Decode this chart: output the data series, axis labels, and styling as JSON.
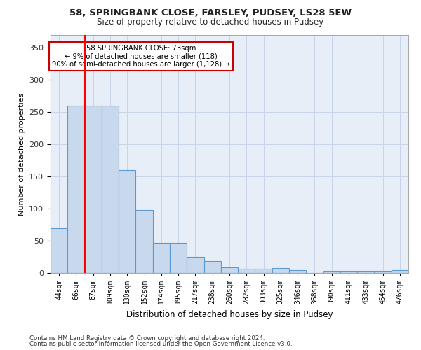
{
  "title_line1": "58, SPRINGBANK CLOSE, FARSLEY, PUDSEY, LS28 5EW",
  "title_line2": "Size of property relative to detached houses in Pudsey",
  "xlabel": "Distribution of detached houses by size in Pudsey",
  "ylabel": "Number of detached properties",
  "categories": [
    "44sqm",
    "66sqm",
    "87sqm",
    "109sqm",
    "130sqm",
    "152sqm",
    "174sqm",
    "195sqm",
    "217sqm",
    "238sqm",
    "260sqm",
    "282sqm",
    "303sqm",
    "325sqm",
    "346sqm",
    "368sqm",
    "390sqm",
    "411sqm",
    "433sqm",
    "454sqm",
    "476sqm"
  ],
  "values": [
    70,
    260,
    260,
    260,
    160,
    98,
    47,
    47,
    25,
    18,
    9,
    6,
    6,
    8,
    4,
    0,
    3,
    3,
    3,
    3,
    4
  ],
  "bar_color": "#c9d9ed",
  "bar_edge_color": "#5b9bd5",
  "red_line_x": 1.5,
  "annotation_text_line1": "58 SPRINGBANK CLOSE: 73sqm",
  "annotation_text_line2": "← 9% of detached houses are smaller (118)",
  "annotation_text_line3": "90% of semi-detached houses are larger (1,128) →",
  "annotation_box_color": "#ffffff",
  "annotation_box_edge": "#cc0000",
  "ylim": [
    0,
    370
  ],
  "yticks": [
    0,
    50,
    100,
    150,
    200,
    250,
    300,
    350
  ],
  "footnote1": "Contains HM Land Registry data © Crown copyright and database right 2024.",
  "footnote2": "Contains public sector information licensed under the Open Government Licence v3.0.",
  "bg_color": "#ffffff",
  "plot_bg_color": "#e8eef7",
  "grid_color": "#c8d4e8"
}
